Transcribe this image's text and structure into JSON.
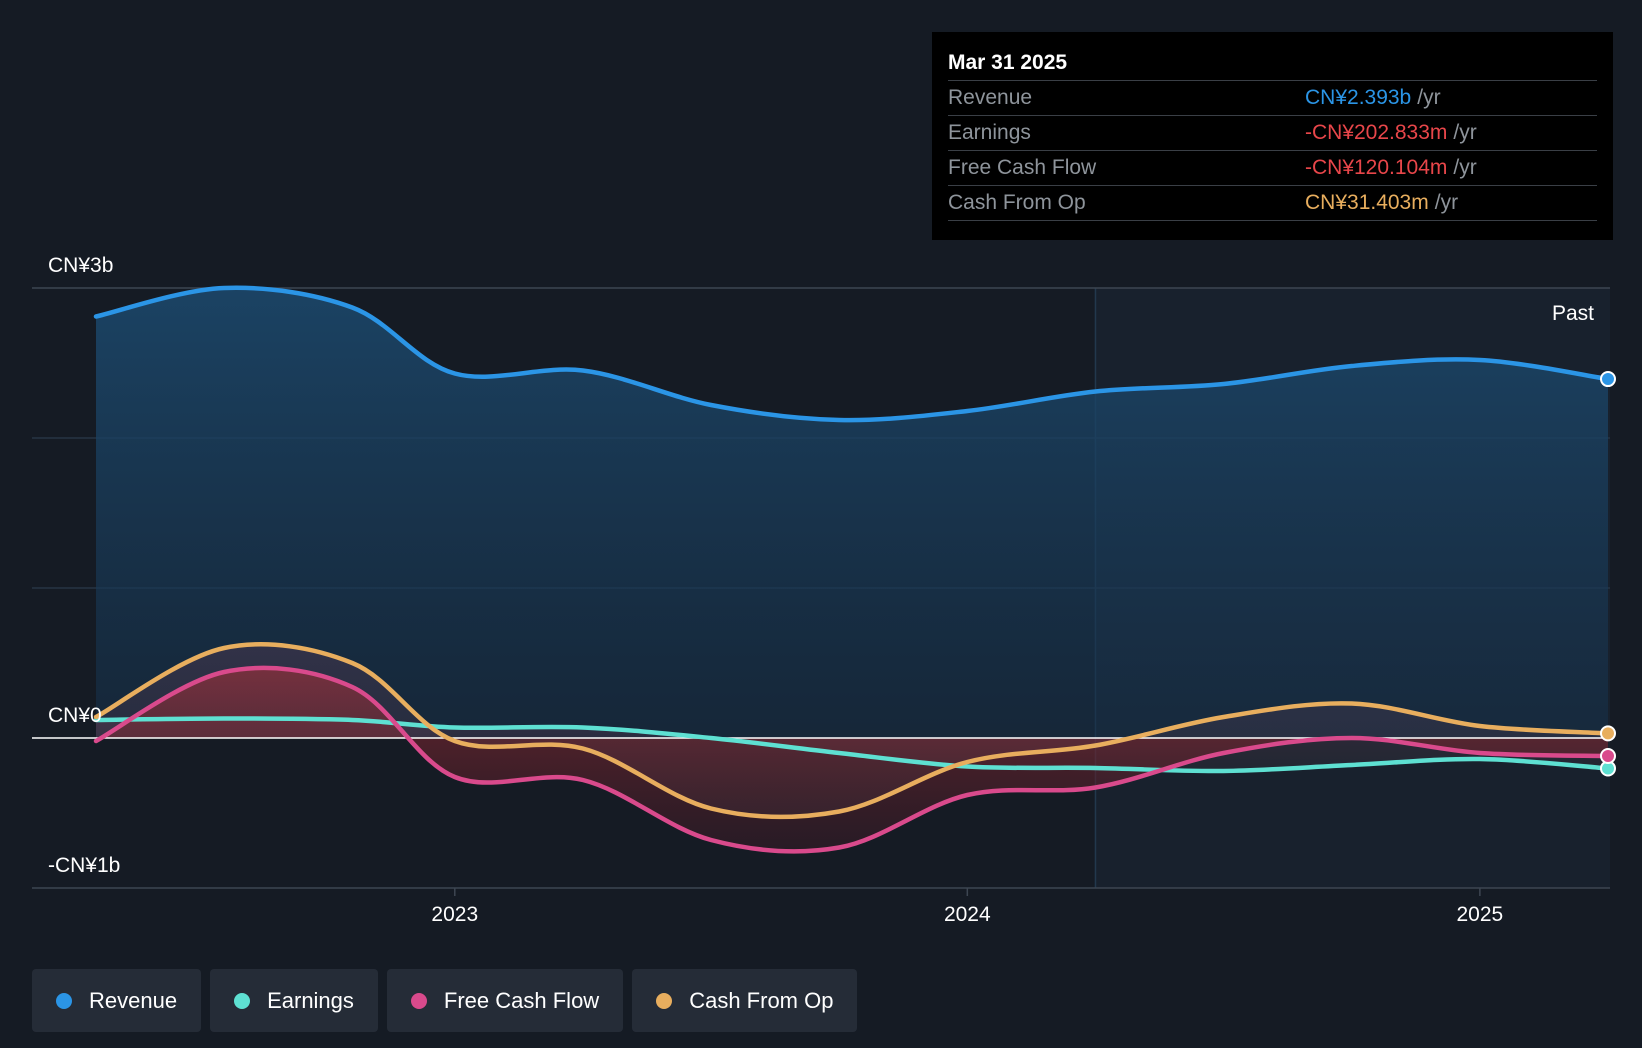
{
  "chart_data": {
    "type": "line",
    "title": "",
    "x": [
      2022.3,
      2022.55,
      2022.8,
      2023.0,
      2023.25,
      2023.5,
      2023.75,
      2024.0,
      2024.25,
      2024.5,
      2024.75,
      2025.0,
      2025.25
    ],
    "series": [
      {
        "name": "Revenue",
        "color": "#2b95e6",
        "values": [
          2.81,
          3.0,
          2.87,
          2.43,
          2.45,
          2.22,
          2.12,
          2.18,
          2.31,
          2.36,
          2.48,
          2.52,
          2.393
        ]
      },
      {
        "name": "Earnings",
        "color": "#5ee0d2",
        "values": [
          0.12,
          0.13,
          0.12,
          0.07,
          0.07,
          0.0,
          -0.1,
          -0.19,
          -0.2,
          -0.22,
          -0.18,
          -0.14,
          -0.203
        ]
      },
      {
        "name": "Free Cash Flow",
        "color": "#d94a8c",
        "values": [
          -0.02,
          0.44,
          0.34,
          -0.26,
          -0.28,
          -0.68,
          -0.73,
          -0.38,
          -0.33,
          -0.1,
          0.0,
          -0.1,
          -0.12
        ]
      },
      {
        "name": "Cash From Op",
        "color": "#e8ae5e",
        "values": [
          0.14,
          0.6,
          0.5,
          -0.02,
          -0.07,
          -0.47,
          -0.49,
          -0.16,
          -0.05,
          0.14,
          0.23,
          0.08,
          0.031
        ]
      }
    ],
    "ylim": [
      -1,
      3
    ],
    "y_ticks": [
      {
        "value": 3,
        "label": "CN¥3b"
      },
      {
        "value": 0,
        "label": "CN¥0"
      },
      {
        "value": -1,
        "label": "-CN¥1b"
      }
    ],
    "x_ticks": [
      {
        "value": 2023.0,
        "label": "2023"
      },
      {
        "value": 2024.0,
        "label": "2024"
      },
      {
        "value": 2025.0,
        "label": "2025"
      }
    ],
    "past_label": "Past",
    "past_start": 2024.25,
    "grid": true,
    "legend_position": "bottom-left"
  },
  "tooltip": {
    "date": "Mar 31 2025",
    "unit": "/yr",
    "rows": [
      {
        "label": "Revenue",
        "value": "CN¥2.393b",
        "color": "#2b95e6"
      },
      {
        "label": "Earnings",
        "value": "-CN¥202.833m",
        "color": "#e8464a"
      },
      {
        "label": "Free Cash Flow",
        "value": "-CN¥120.104m",
        "color": "#e8464a"
      },
      {
        "label": "Cash From Op",
        "value": "CN¥31.403m",
        "color": "#e8ae5e"
      }
    ]
  },
  "legend": [
    {
      "label": "Revenue",
      "color": "#2b95e6"
    },
    {
      "label": "Earnings",
      "color": "#5ee0d2"
    },
    {
      "label": "Free Cash Flow",
      "color": "#d94a8c"
    },
    {
      "label": "Cash From Op",
      "color": "#e8ae5e"
    }
  ]
}
